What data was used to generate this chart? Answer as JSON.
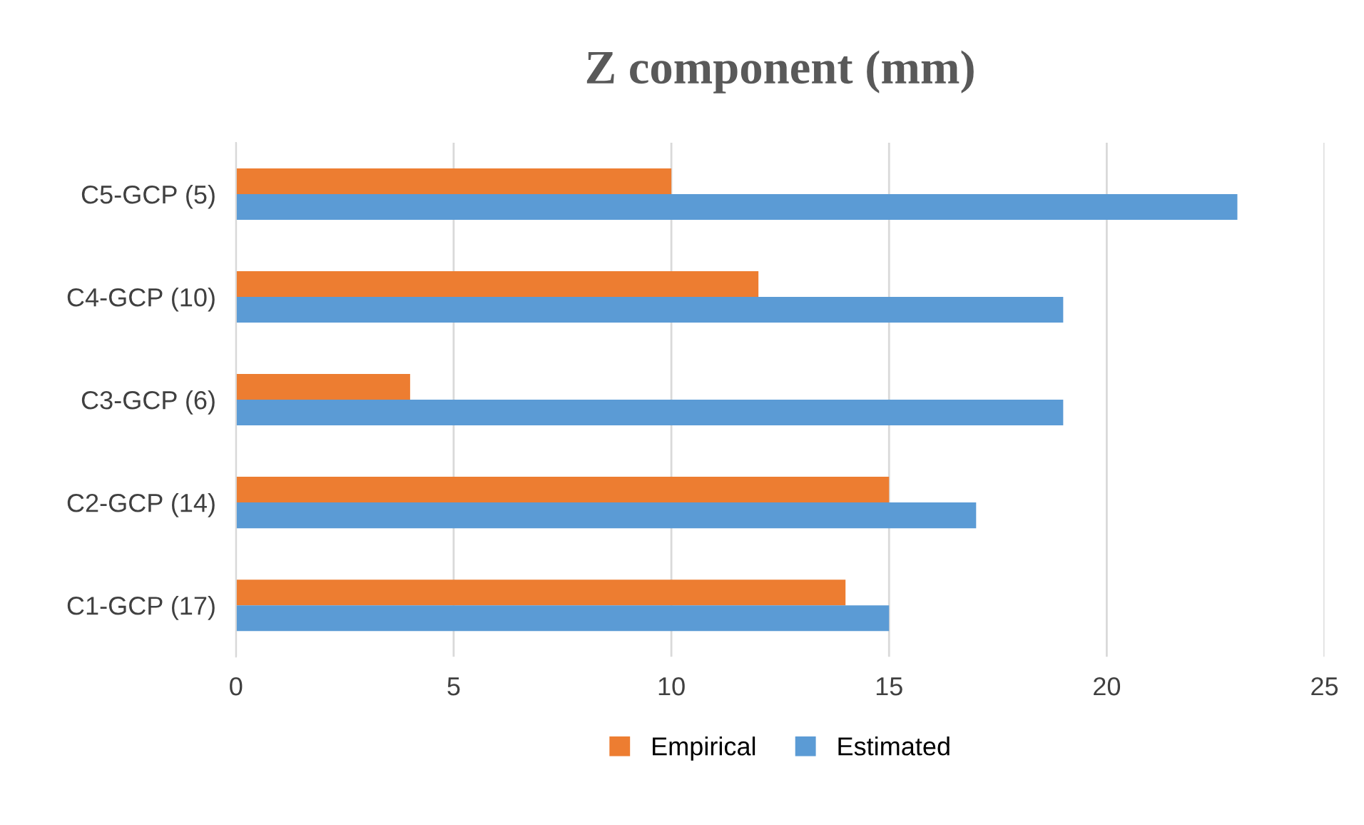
{
  "chart_data": {
    "type": "bar",
    "orientation": "horizontal",
    "title": "Z component (mm)",
    "categories": [
      "C5-GCP (5)",
      "C4-GCP (10)",
      "C3-GCP (6)",
      "C2-GCP (14)",
      "C1-GCP (17)"
    ],
    "series": [
      {
        "name": "Empirical",
        "color": "#ed7d31",
        "values": [
          10,
          12,
          4,
          15,
          14
        ]
      },
      {
        "name": "Estimated",
        "color": "#5b9bd5",
        "values": [
          23,
          19,
          19,
          17,
          15
        ]
      }
    ],
    "xlim": [
      0,
      25
    ],
    "xticks": [
      0,
      5,
      10,
      15,
      20,
      25
    ],
    "grid": "x",
    "legend": "bottom"
  }
}
